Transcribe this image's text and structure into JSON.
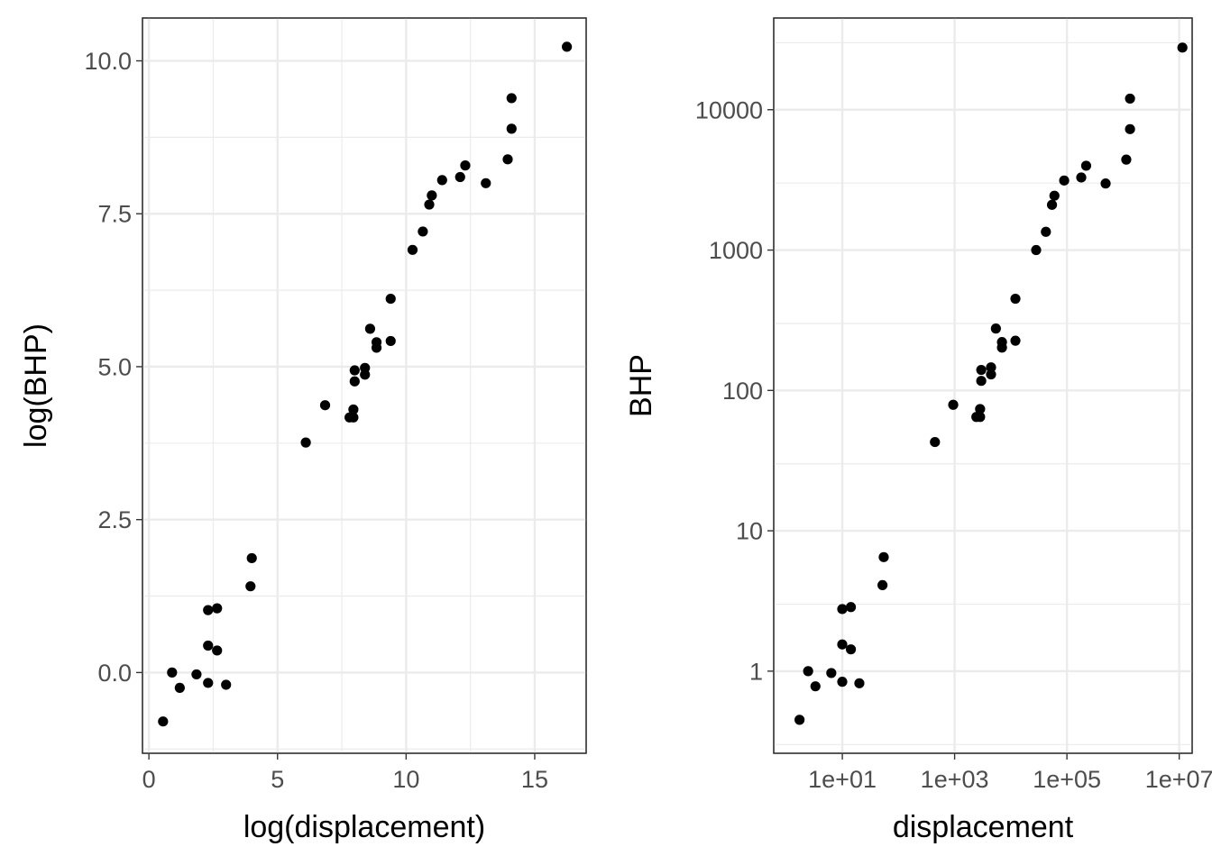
{
  "chart_data": [
    {
      "type": "scatter",
      "xlabel": "log(displacement)",
      "ylabel": "log(BHP)",
      "xlim": [
        -0.25,
        17.0
      ],
      "ylim": [
        -1.32,
        10.7
      ],
      "x_ticks": [
        0,
        5,
        10,
        15
      ],
      "x_tick_labels": [
        "0",
        "5",
        "10",
        "15"
      ],
      "y_ticks": [
        0.0,
        2.5,
        5.0,
        7.5,
        10.0
      ],
      "y_tick_labels": [
        "0.0",
        "2.5",
        "5.0",
        "7.5",
        "10.0"
      ],
      "points": [
        {
          "x": 0.55,
          "y": -0.8
        },
        {
          "x": 0.9,
          "y": 0.0
        },
        {
          "x": 1.2,
          "y": -0.25
        },
        {
          "x": 1.85,
          "y": -0.03
        },
        {
          "x": 2.3,
          "y": -0.17
        },
        {
          "x": 2.3,
          "y": 0.44
        },
        {
          "x": 2.3,
          "y": 1.02
        },
        {
          "x": 2.65,
          "y": 0.36
        },
        {
          "x": 2.65,
          "y": 1.05
        },
        {
          "x": 3.0,
          "y": -0.2
        },
        {
          "x": 3.95,
          "y": 1.41
        },
        {
          "x": 4.0,
          "y": 1.87
        },
        {
          "x": 6.1,
          "y": 3.76
        },
        {
          "x": 6.85,
          "y": 4.37
        },
        {
          "x": 7.8,
          "y": 4.17
        },
        {
          "x": 7.95,
          "y": 4.17
        },
        {
          "x": 7.95,
          "y": 4.3
        },
        {
          "x": 8.0,
          "y": 4.76
        },
        {
          "x": 8.0,
          "y": 4.94
        },
        {
          "x": 8.4,
          "y": 4.87
        },
        {
          "x": 8.4,
          "y": 4.98
        },
        {
          "x": 8.6,
          "y": 5.62
        },
        {
          "x": 8.85,
          "y": 5.31
        },
        {
          "x": 8.85,
          "y": 5.4
        },
        {
          "x": 9.4,
          "y": 5.42
        },
        {
          "x": 9.4,
          "y": 6.11
        },
        {
          "x": 10.25,
          "y": 6.91
        },
        {
          "x": 10.65,
          "y": 7.21
        },
        {
          "x": 10.9,
          "y": 7.65
        },
        {
          "x": 11.0,
          "y": 7.8
        },
        {
          "x": 11.4,
          "y": 8.05
        },
        {
          "x": 12.1,
          "y": 8.1
        },
        {
          "x": 12.3,
          "y": 8.29
        },
        {
          "x": 13.1,
          "y": 8.0
        },
        {
          "x": 13.95,
          "y": 8.39
        },
        {
          "x": 14.1,
          "y": 8.89
        },
        {
          "x": 14.1,
          "y": 9.39
        },
        {
          "x": 16.25,
          "y": 10.23
        }
      ]
    },
    {
      "type": "scatter",
      "xlabel": "displacement",
      "ylabel": "BHP",
      "x_scale": "log10",
      "y_scale": "log10",
      "xlim": [
        0.6,
        17000000
      ],
      "ylim": [
        0.26,
        45000
      ],
      "x_ticks": [
        10,
        1000,
        100000,
        10000000
      ],
      "x_tick_labels": [
        "1e+01",
        "1e+03",
        "1e+05",
        "1e+07"
      ],
      "y_ticks": [
        1,
        10,
        100,
        1000,
        10000
      ],
      "y_tick_labels": [
        "1",
        "10",
        "100",
        "1000",
        "10000"
      ],
      "points": [
        {
          "x": 1.73,
          "y": 0.45
        },
        {
          "x": 2.46,
          "y": 1.0
        },
        {
          "x": 3.32,
          "y": 0.78
        },
        {
          "x": 6.36,
          "y": 0.97
        },
        {
          "x": 9.97,
          "y": 0.84
        },
        {
          "x": 9.97,
          "y": 1.55
        },
        {
          "x": 9.97,
          "y": 2.77
        },
        {
          "x": 14.2,
          "y": 1.43
        },
        {
          "x": 14.2,
          "y": 2.86
        },
        {
          "x": 20.1,
          "y": 0.82
        },
        {
          "x": 51.9,
          "y": 4.1
        },
        {
          "x": 54.6,
          "y": 6.49
        },
        {
          "x": 446,
          "y": 42.9
        },
        {
          "x": 944,
          "y": 79.0
        },
        {
          "x": 2440,
          "y": 64.7
        },
        {
          "x": 2840,
          "y": 64.7
        },
        {
          "x": 2840,
          "y": 73.7
        },
        {
          "x": 2980,
          "y": 117
        },
        {
          "x": 2980,
          "y": 140
        },
        {
          "x": 4450,
          "y": 130
        },
        {
          "x": 4450,
          "y": 146
        },
        {
          "x": 5430,
          "y": 276
        },
        {
          "x": 6970,
          "y": 202
        },
        {
          "x": 6970,
          "y": 221
        },
        {
          "x": 12100,
          "y": 226
        },
        {
          "x": 12100,
          "y": 450
        },
        {
          "x": 28300,
          "y": 1000
        },
        {
          "x": 42200,
          "y": 1350
        },
        {
          "x": 54200,
          "y": 2100
        },
        {
          "x": 59900,
          "y": 2440
        },
        {
          "x": 89300,
          "y": 3130
        },
        {
          "x": 180000,
          "y": 3290
        },
        {
          "x": 220000,
          "y": 3990
        },
        {
          "x": 489000,
          "y": 2980
        },
        {
          "x": 1140000,
          "y": 4410
        },
        {
          "x": 1330000,
          "y": 7270
        },
        {
          "x": 1330000,
          "y": 12000
        },
        {
          "x": 11400000,
          "y": 27700
        }
      ]
    }
  ]
}
